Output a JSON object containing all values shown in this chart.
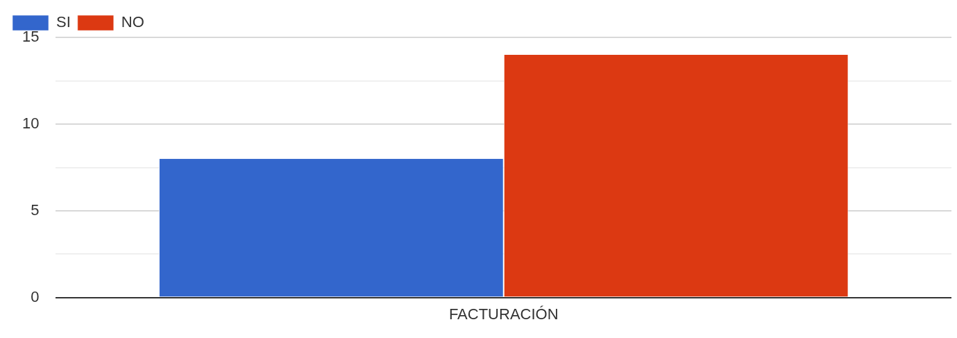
{
  "chart_data": {
    "type": "bar",
    "categories": [
      "FACTURACIÓN"
    ],
    "series": [
      {
        "name": "SI",
        "color": "#3366cc",
        "values": [
          8
        ]
      },
      {
        "name": "NO",
        "color": "#dc3912",
        "values": [
          14
        ]
      }
    ],
    "ylim": [
      0,
      15
    ],
    "yticks": [
      0,
      {
        "value": 2.5,
        "label": null
      },
      5,
      {
        "value": 7.5,
        "label": null
      },
      10,
      {
        "value": 12.5,
        "label": null
      },
      15
    ],
    "grid": "y",
    "legend": "top left"
  }
}
